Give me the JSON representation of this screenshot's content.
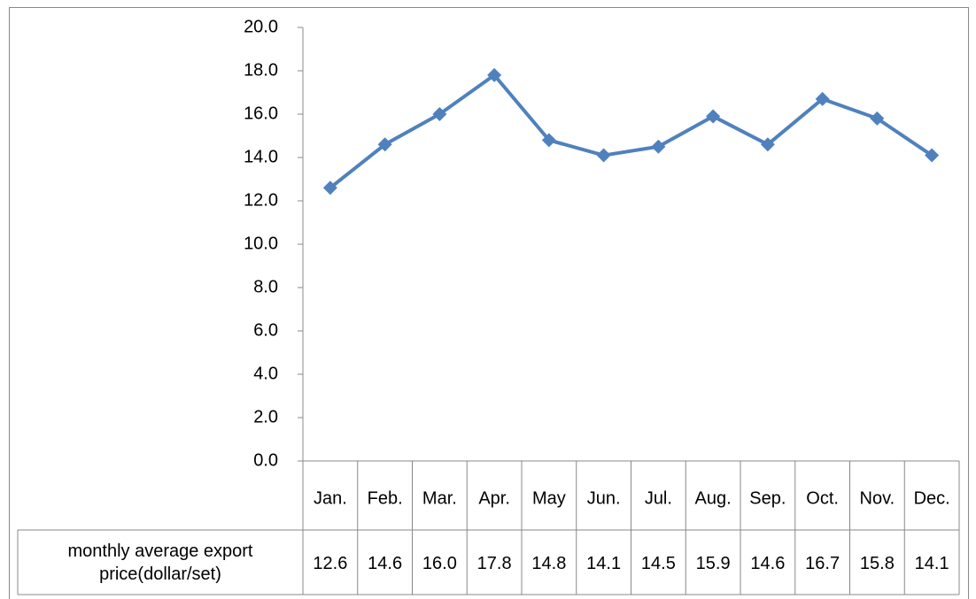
{
  "chart_data": {
    "type": "line",
    "categories": [
      "Jan.",
      "Feb.",
      "Mar.",
      "Apr.",
      "May",
      "Jun.",
      "Jul.",
      "Aug.",
      "Sep.",
      "Oct.",
      "Nov.",
      "Dec."
    ],
    "series": [
      {
        "name": "monthly average export price(dollar/set)",
        "color": "#4f81bd",
        "values": [
          12.6,
          14.6,
          16.0,
          17.8,
          14.8,
          14.1,
          14.5,
          15.9,
          14.6,
          16.7,
          15.8,
          14.1
        ],
        "value_labels": [
          "12.6",
          "14.6",
          "16.0",
          "17.8",
          "14.8",
          "14.1",
          "14.5",
          "15.9",
          "14.6",
          "16.7",
          "15.8",
          "14.1"
        ]
      }
    ],
    "ylim": [
      0,
      20
    ],
    "yticks": [
      {
        "value": 0,
        "label": "0.0"
      },
      {
        "value": 2,
        "label": "2.0"
      },
      {
        "value": 4,
        "label": "4.0"
      },
      {
        "value": 6,
        "label": "6.0"
      },
      {
        "value": 8,
        "label": "8.0"
      },
      {
        "value": 10,
        "label": "10.0"
      },
      {
        "value": 12,
        "label": "12.0"
      },
      {
        "value": 14,
        "label": "14.0"
      },
      {
        "value": 16,
        "label": "16.0"
      },
      {
        "value": 18,
        "label": "18.0"
      },
      {
        "value": 20,
        "label": "20.0"
      }
    ],
    "data_table": true
  }
}
